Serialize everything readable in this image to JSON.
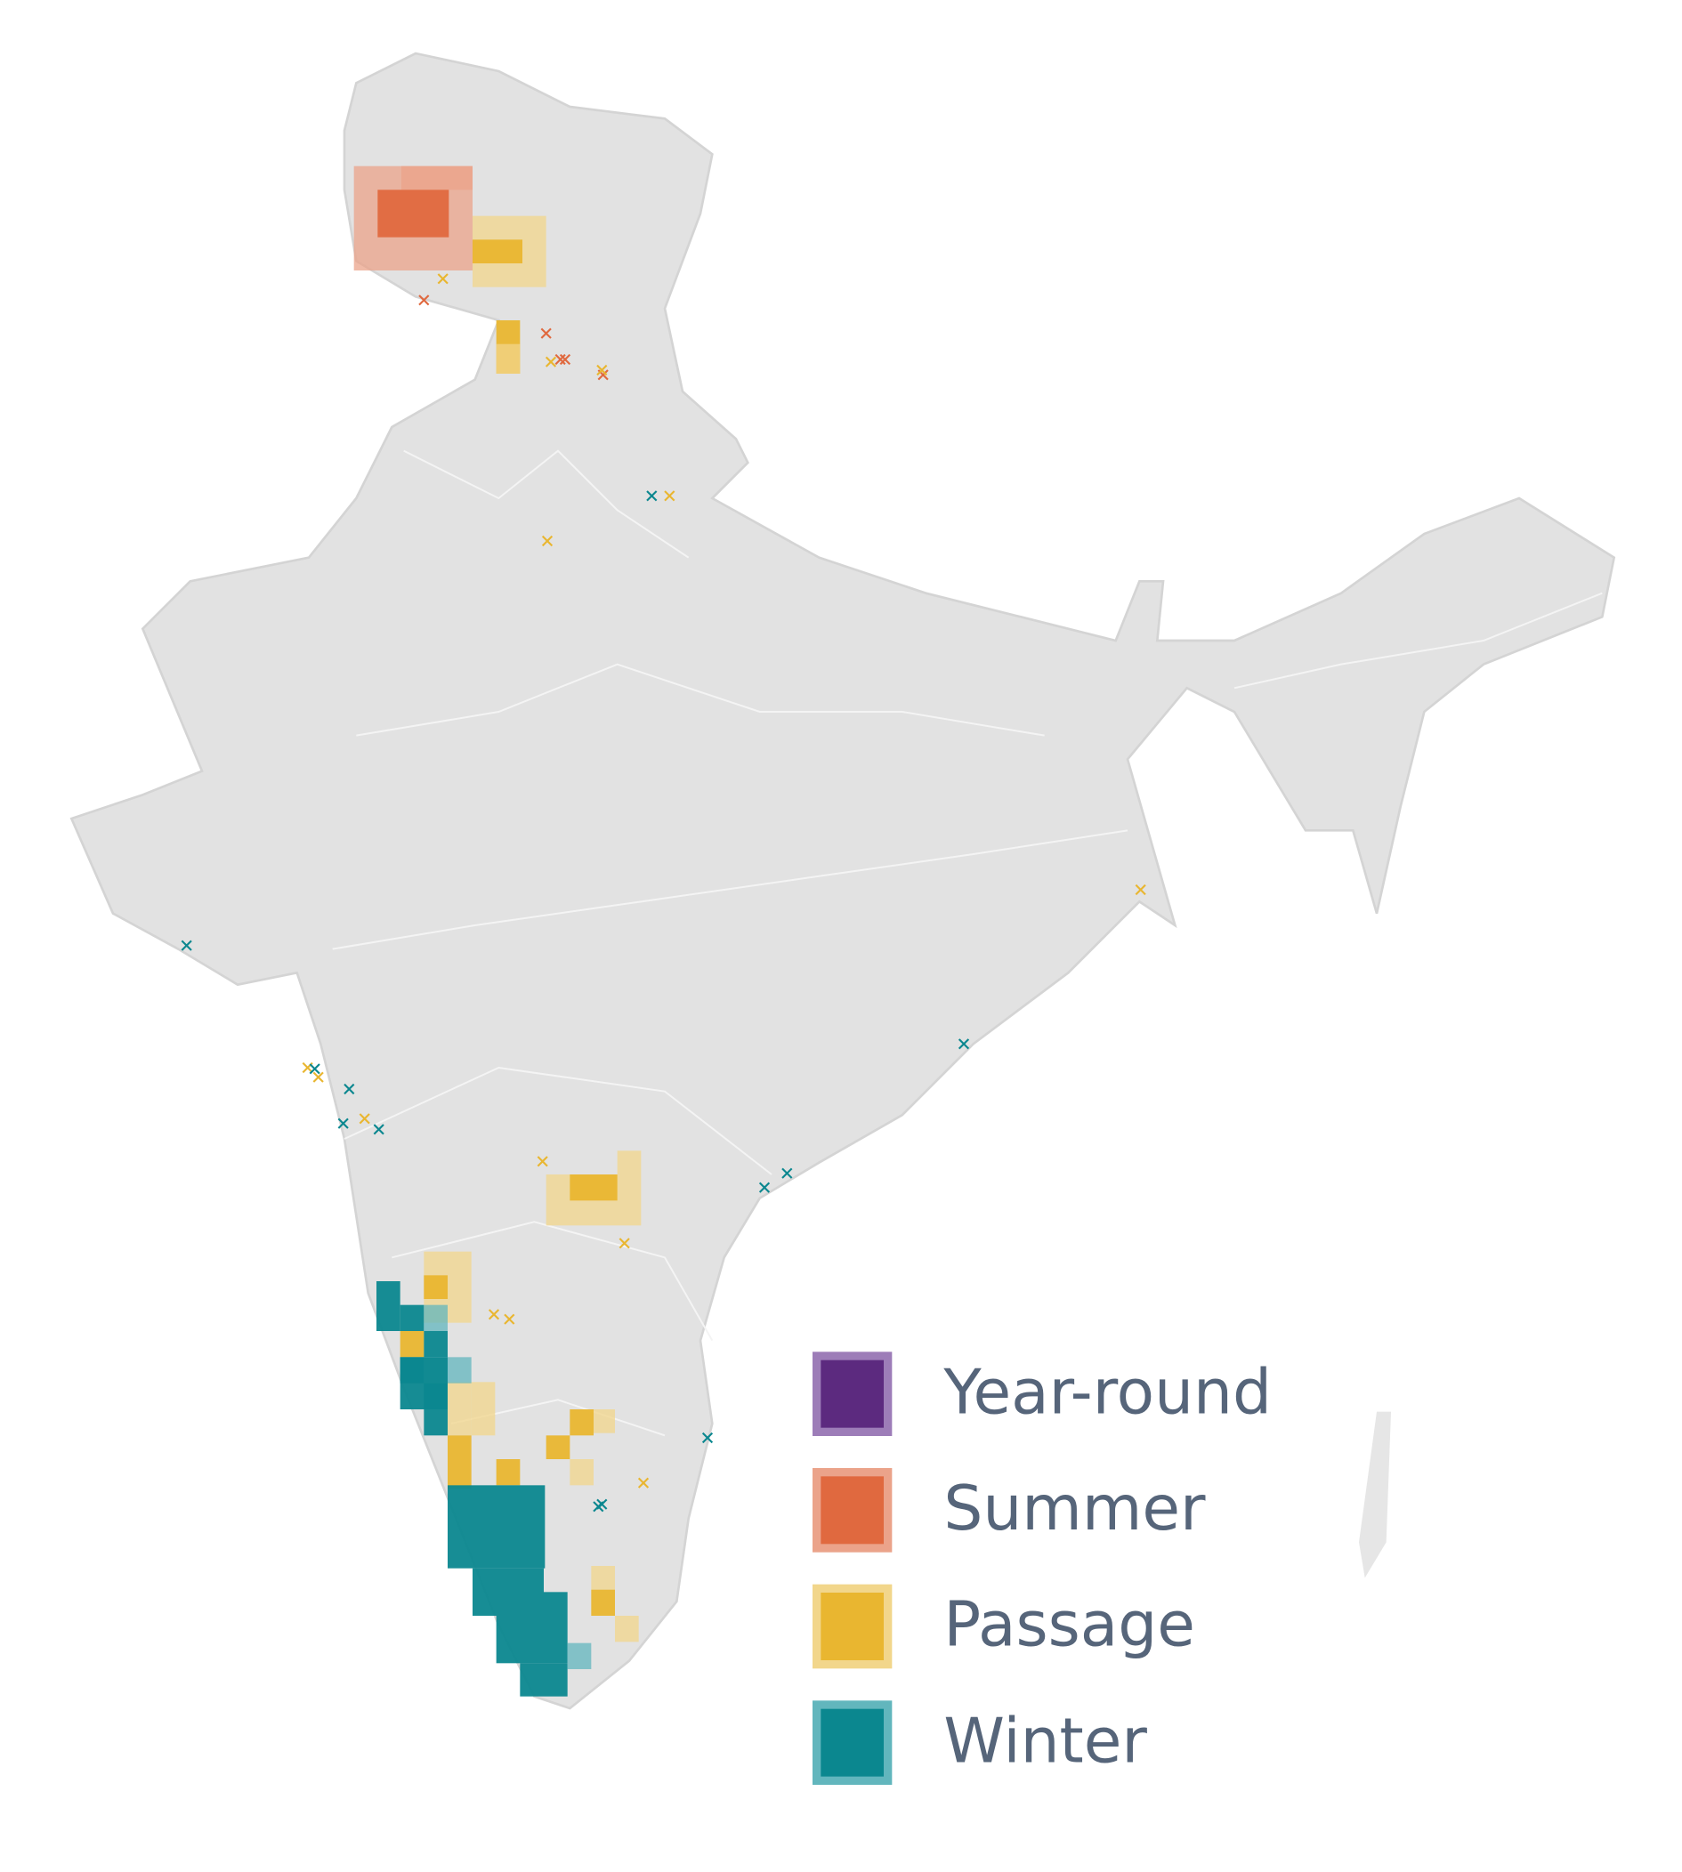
{
  "legend": {
    "items": [
      {
        "label": "Year-round",
        "color": "#5c2a7f",
        "border_color": "#9d7db8"
      },
      {
        "label": "Summer",
        "color": "#e0693f",
        "border_color": "#eba38a"
      },
      {
        "label": "Passage",
        "color": "#e9b630",
        "border_color": "#f2d68b"
      },
      {
        "label": "Winter",
        "color": "#0b878f",
        "border_color": "#62b6bd"
      }
    ]
  }
}
